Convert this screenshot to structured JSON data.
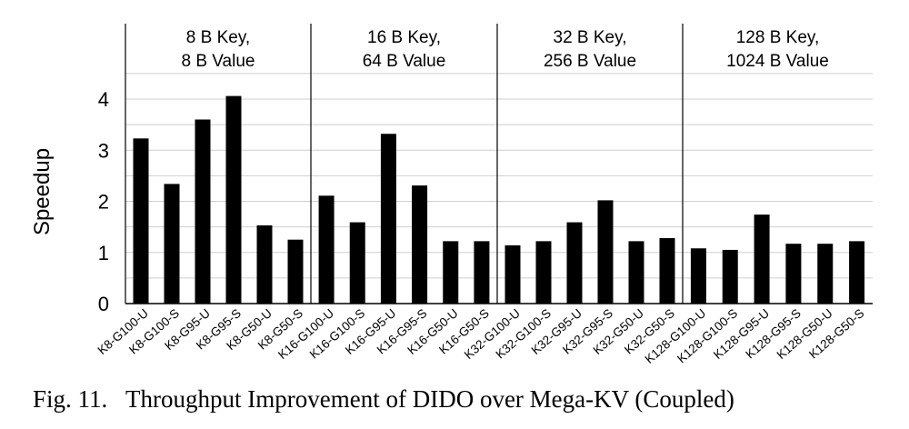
{
  "caption": "Fig. 11.   Throughput Improvement of DIDO over Mega-KV (Coupled)",
  "chart_data": {
    "type": "bar",
    "ylabel": "Speedup",
    "ylim": [
      0,
      4.5
    ],
    "yticks": [
      "0",
      "1",
      "2",
      "3",
      "4"
    ],
    "grid": true,
    "groups": [
      {
        "title_line1": "8 B Key,",
        "title_line2": "8 B Value",
        "categories": [
          "K8-G100-U",
          "K8-G100-S",
          "K8-G95-U",
          "K8-G95-S",
          "K8-G50-U",
          "K8-G50-S"
        ],
        "values": [
          3.23,
          2.34,
          3.6,
          4.06,
          1.53,
          1.25
        ]
      },
      {
        "title_line1": "16 B Key,",
        "title_line2": "64 B Value",
        "categories": [
          "K16-G100-U",
          "K16-G100-S",
          "K16-G95-U",
          "K16-G95-S",
          "K16-G50-U",
          "K16-G50-S"
        ],
        "values": [
          2.11,
          1.59,
          3.32,
          2.31,
          1.22,
          1.22
        ]
      },
      {
        "title_line1": "32 B Key,",
        "title_line2": "256 B Value",
        "categories": [
          "K32-G100-U",
          "K32-G100-S",
          "K32-G95-U",
          "K32-G95-S",
          "K32-G50-U",
          "K32-G50-S"
        ],
        "values": [
          1.14,
          1.22,
          1.59,
          2.02,
          1.22,
          1.28
        ]
      },
      {
        "title_line1": "128 B Key,",
        "title_line2": "1024 B Value",
        "categories": [
          "K128-G100-U",
          "K128-G100-S",
          "K128-G95-U",
          "K128-G95-S",
          "K128-G50-U",
          "K128-G50-S"
        ],
        "values": [
          1.08,
          1.05,
          1.74,
          1.17,
          1.17,
          1.22
        ]
      }
    ]
  }
}
